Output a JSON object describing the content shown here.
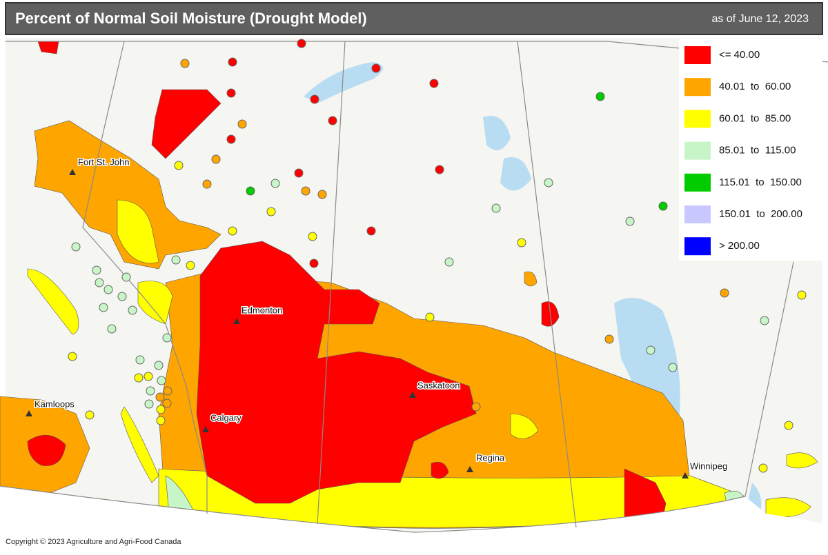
{
  "header": {
    "title": "Percent of Normal Soil Moisture (Drought Model)",
    "date": "as of June 12, 2023"
  },
  "legend": {
    "items": [
      {
        "label": "<= 40.00",
        "color": "#ff0000"
      },
      {
        "label": "40.01  to  60.00",
        "color": "#ffa500"
      },
      {
        "label": "60.01  to  85.00",
        "color": "#ffff00"
      },
      {
        "label": "85.01  to  115.00",
        "color": "#c8f5c8"
      },
      {
        "label": "115.01  to  150.00",
        "color": "#00cc00"
      },
      {
        "label": "150.01  to  200.00",
        "color": "#c8c8ff"
      },
      {
        "label": "> 200.00",
        "color": "#0000ff"
      }
    ]
  },
  "cities": [
    "Fort St. John",
    "Edmonton",
    "Calgary",
    "Saskatoon",
    "Regina",
    "Winnipeg",
    "Kamloops"
  ],
  "copyright": "Copyright © 2023 Agriculture and Agri-Food Canada"
}
